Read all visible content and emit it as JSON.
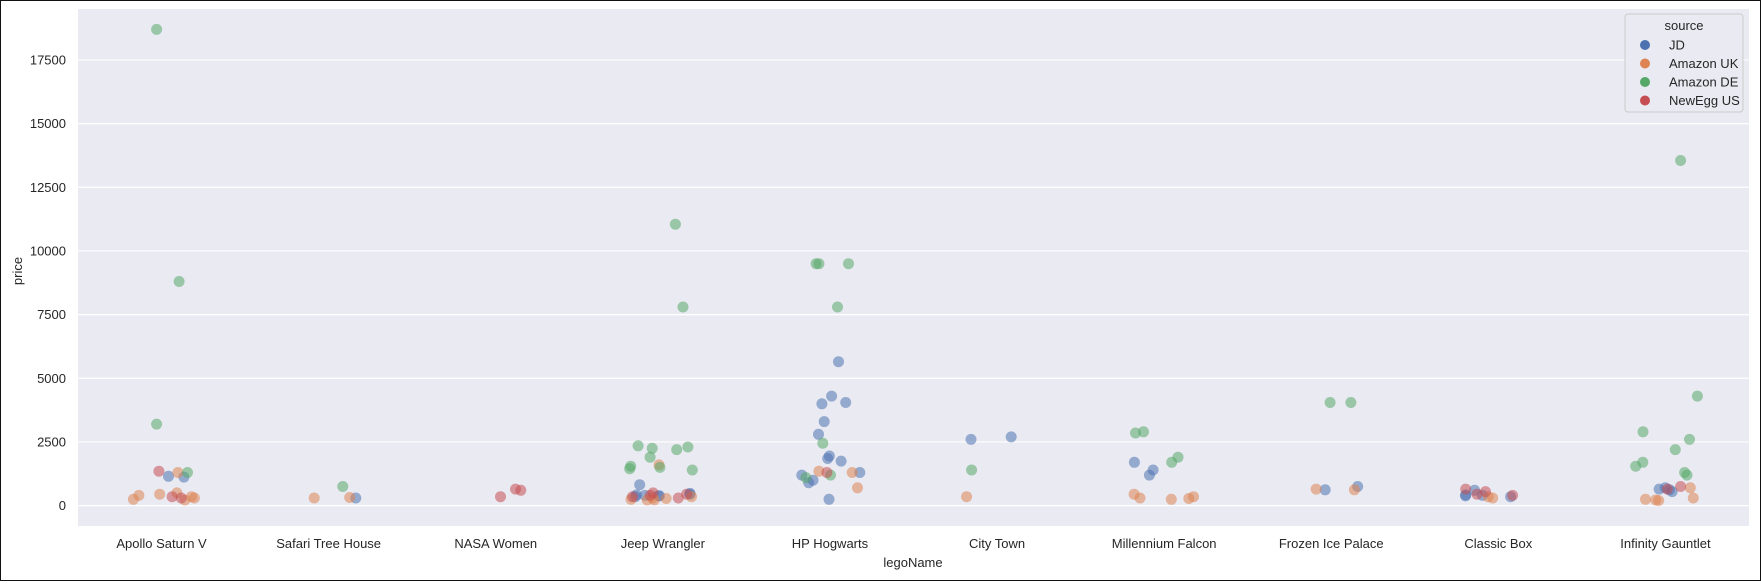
{
  "chart_data": {
    "type": "scatter",
    "xlabel": "legoName",
    "ylabel": "price",
    "ylim": [
      -800,
      19500
    ],
    "yticks": [
      0,
      2500,
      5000,
      7500,
      10000,
      12500,
      15000,
      17500
    ],
    "ytick_labels": [
      "0",
      "2500",
      "5000",
      "7500",
      "10000",
      "12500",
      "15000",
      "17500"
    ],
    "categories": [
      "Apollo Saturn V",
      "Safari Tree House",
      "NASA Women",
      "Jeep Wrangler",
      "HP Hogwarts",
      "City Town",
      "Millennium Falcon",
      "Frozen Ice Palace",
      "Classic Box",
      "Infinity Gauntlet"
    ],
    "grid": true,
    "legend_position": "top-right",
    "legend_title": "source",
    "point_alpha": 0.55,
    "series": [
      {
        "name": "JD",
        "color": "#4c72b0",
        "points": [
          [
            "Apollo Saturn V",
            1150
          ],
          [
            "Apollo Saturn V",
            1120
          ],
          [
            "Safari Tree House",
            300
          ],
          [
            "Jeep Wrangler",
            380
          ],
          [
            "Jeep Wrangler",
            420
          ],
          [
            "Jeep Wrangler",
            450
          ],
          [
            "Jeep Wrangler",
            350
          ],
          [
            "Jeep Wrangler",
            820
          ],
          [
            "Jeep Wrangler",
            480
          ],
          [
            "Jeep Wrangler",
            400
          ],
          [
            "Jeep Wrangler",
            390
          ],
          [
            "HP Hogwarts",
            5650
          ],
          [
            "HP Hogwarts",
            4300
          ],
          [
            "HP Hogwarts",
            4050
          ],
          [
            "HP Hogwarts",
            4000
          ],
          [
            "HP Hogwarts",
            3300
          ],
          [
            "HP Hogwarts",
            2800
          ],
          [
            "HP Hogwarts",
            1950
          ],
          [
            "HP Hogwarts",
            1850
          ],
          [
            "HP Hogwarts",
            1750
          ],
          [
            "HP Hogwarts",
            1300
          ],
          [
            "HP Hogwarts",
            1200
          ],
          [
            "HP Hogwarts",
            1000
          ],
          [
            "HP Hogwarts",
            900
          ],
          [
            "HP Hogwarts",
            250
          ],
          [
            "City Town",
            2600
          ],
          [
            "City Town",
            2700
          ],
          [
            "Millennium Falcon",
            1700
          ],
          [
            "Millennium Falcon",
            1400
          ],
          [
            "Millennium Falcon",
            1200
          ],
          [
            "Frozen Ice Palace",
            750
          ],
          [
            "Frozen Ice Palace",
            620
          ],
          [
            "Classic Box",
            400
          ],
          [
            "Classic Box",
            350
          ],
          [
            "Classic Box",
            600
          ],
          [
            "Classic Box",
            380
          ],
          [
            "Classic Box",
            420
          ],
          [
            "Infinity Gauntlet",
            620
          ],
          [
            "Infinity Gauntlet",
            650
          ],
          [
            "Infinity Gauntlet",
            550
          ],
          [
            "Infinity Gauntlet",
            700
          ]
        ]
      },
      {
        "name": "Amazon UK",
        "color": "#dd8452",
        "points": [
          [
            "Apollo Saturn V",
            1300
          ],
          [
            "Apollo Saturn V",
            500
          ],
          [
            "Apollo Saturn V",
            450
          ],
          [
            "Apollo Saturn V",
            400
          ],
          [
            "Apollo Saturn V",
            350
          ],
          [
            "Apollo Saturn V",
            300
          ],
          [
            "Apollo Saturn V",
            250
          ],
          [
            "Apollo Saturn V",
            220
          ],
          [
            "Safari Tree House",
            320
          ],
          [
            "Safari Tree House",
            300
          ],
          [
            "Jeep Wrangler",
            1600
          ],
          [
            "Jeep Wrangler",
            350
          ],
          [
            "Jeep Wrangler",
            300
          ],
          [
            "Jeep Wrangler",
            280
          ],
          [
            "Jeep Wrangler",
            250
          ],
          [
            "Jeep Wrangler",
            230
          ],
          [
            "Jeep Wrangler",
            220
          ],
          [
            "HP Hogwarts",
            1350
          ],
          [
            "HP Hogwarts",
            1300
          ],
          [
            "HP Hogwarts",
            700
          ],
          [
            "City Town",
            350
          ],
          [
            "Millennium Falcon",
            450
          ],
          [
            "Millennium Falcon",
            350
          ],
          [
            "Millennium Falcon",
            300
          ],
          [
            "Millennium Falcon",
            280
          ],
          [
            "Millennium Falcon",
            250
          ],
          [
            "Frozen Ice Palace",
            650
          ],
          [
            "Frozen Ice Palace",
            620
          ],
          [
            "Classic Box",
            350
          ],
          [
            "Classic Box",
            300
          ],
          [
            "Infinity Gauntlet",
            700
          ],
          [
            "Infinity Gauntlet",
            300
          ],
          [
            "Infinity Gauntlet",
            250
          ],
          [
            "Infinity Gauntlet",
            220
          ],
          [
            "Infinity Gauntlet",
            200
          ]
        ]
      },
      {
        "name": "Amazon DE",
        "color": "#55a868",
        "points": [
          [
            "Apollo Saturn V",
            18700
          ],
          [
            "Apollo Saturn V",
            8800
          ],
          [
            "Apollo Saturn V",
            3200
          ],
          [
            "Apollo Saturn V",
            1300
          ],
          [
            "Safari Tree House",
            750
          ],
          [
            "Jeep Wrangler",
            11050
          ],
          [
            "Jeep Wrangler",
            7800
          ],
          [
            "Jeep Wrangler",
            2350
          ],
          [
            "Jeep Wrangler",
            2300
          ],
          [
            "Jeep Wrangler",
            2250
          ],
          [
            "Jeep Wrangler",
            2200
          ],
          [
            "Jeep Wrangler",
            1900
          ],
          [
            "Jeep Wrangler",
            1550
          ],
          [
            "Jeep Wrangler",
            1500
          ],
          [
            "Jeep Wrangler",
            1450
          ],
          [
            "Jeep Wrangler",
            1400
          ],
          [
            "HP Hogwarts",
            9500
          ],
          [
            "HP Hogwarts",
            9500
          ],
          [
            "HP Hogwarts",
            9500
          ],
          [
            "HP Hogwarts",
            7800
          ],
          [
            "HP Hogwarts",
            2450
          ],
          [
            "HP Hogwarts",
            1200
          ],
          [
            "HP Hogwarts",
            1100
          ],
          [
            "City Town",
            1400
          ],
          [
            "Millennium Falcon",
            2900
          ],
          [
            "Millennium Falcon",
            2850
          ],
          [
            "Millennium Falcon",
            1900
          ],
          [
            "Millennium Falcon",
            1700
          ],
          [
            "Frozen Ice Palace",
            4050
          ],
          [
            "Frozen Ice Palace",
            4050
          ],
          [
            "Infinity Gauntlet",
            13550
          ],
          [
            "Infinity Gauntlet",
            4300
          ],
          [
            "Infinity Gauntlet",
            2900
          ],
          [
            "Infinity Gauntlet",
            2600
          ],
          [
            "Infinity Gauntlet",
            2200
          ],
          [
            "Infinity Gauntlet",
            1700
          ],
          [
            "Infinity Gauntlet",
            1550
          ],
          [
            "Infinity Gauntlet",
            1300
          ],
          [
            "Infinity Gauntlet",
            1200
          ]
        ]
      },
      {
        "name": "NewEgg US",
        "color": "#c44e52",
        "points": [
          [
            "Apollo Saturn V",
            1350
          ],
          [
            "Apollo Saturn V",
            350
          ],
          [
            "Apollo Saturn V",
            300
          ],
          [
            "NASA Women",
            650
          ],
          [
            "NASA Women",
            600
          ],
          [
            "NASA Women",
            350
          ],
          [
            "Jeep Wrangler",
            500
          ],
          [
            "Jeep Wrangler",
            450
          ],
          [
            "Jeep Wrangler",
            400
          ],
          [
            "Jeep Wrangler",
            350
          ],
          [
            "Jeep Wrangler",
            300
          ],
          [
            "HP Hogwarts",
            1300
          ],
          [
            "Classic Box",
            650
          ],
          [
            "Classic Box",
            550
          ],
          [
            "Classic Box",
            450
          ],
          [
            "Classic Box",
            400
          ],
          [
            "Infinity Gauntlet",
            750
          ],
          [
            "Infinity Gauntlet",
            650
          ]
        ]
      }
    ]
  }
}
